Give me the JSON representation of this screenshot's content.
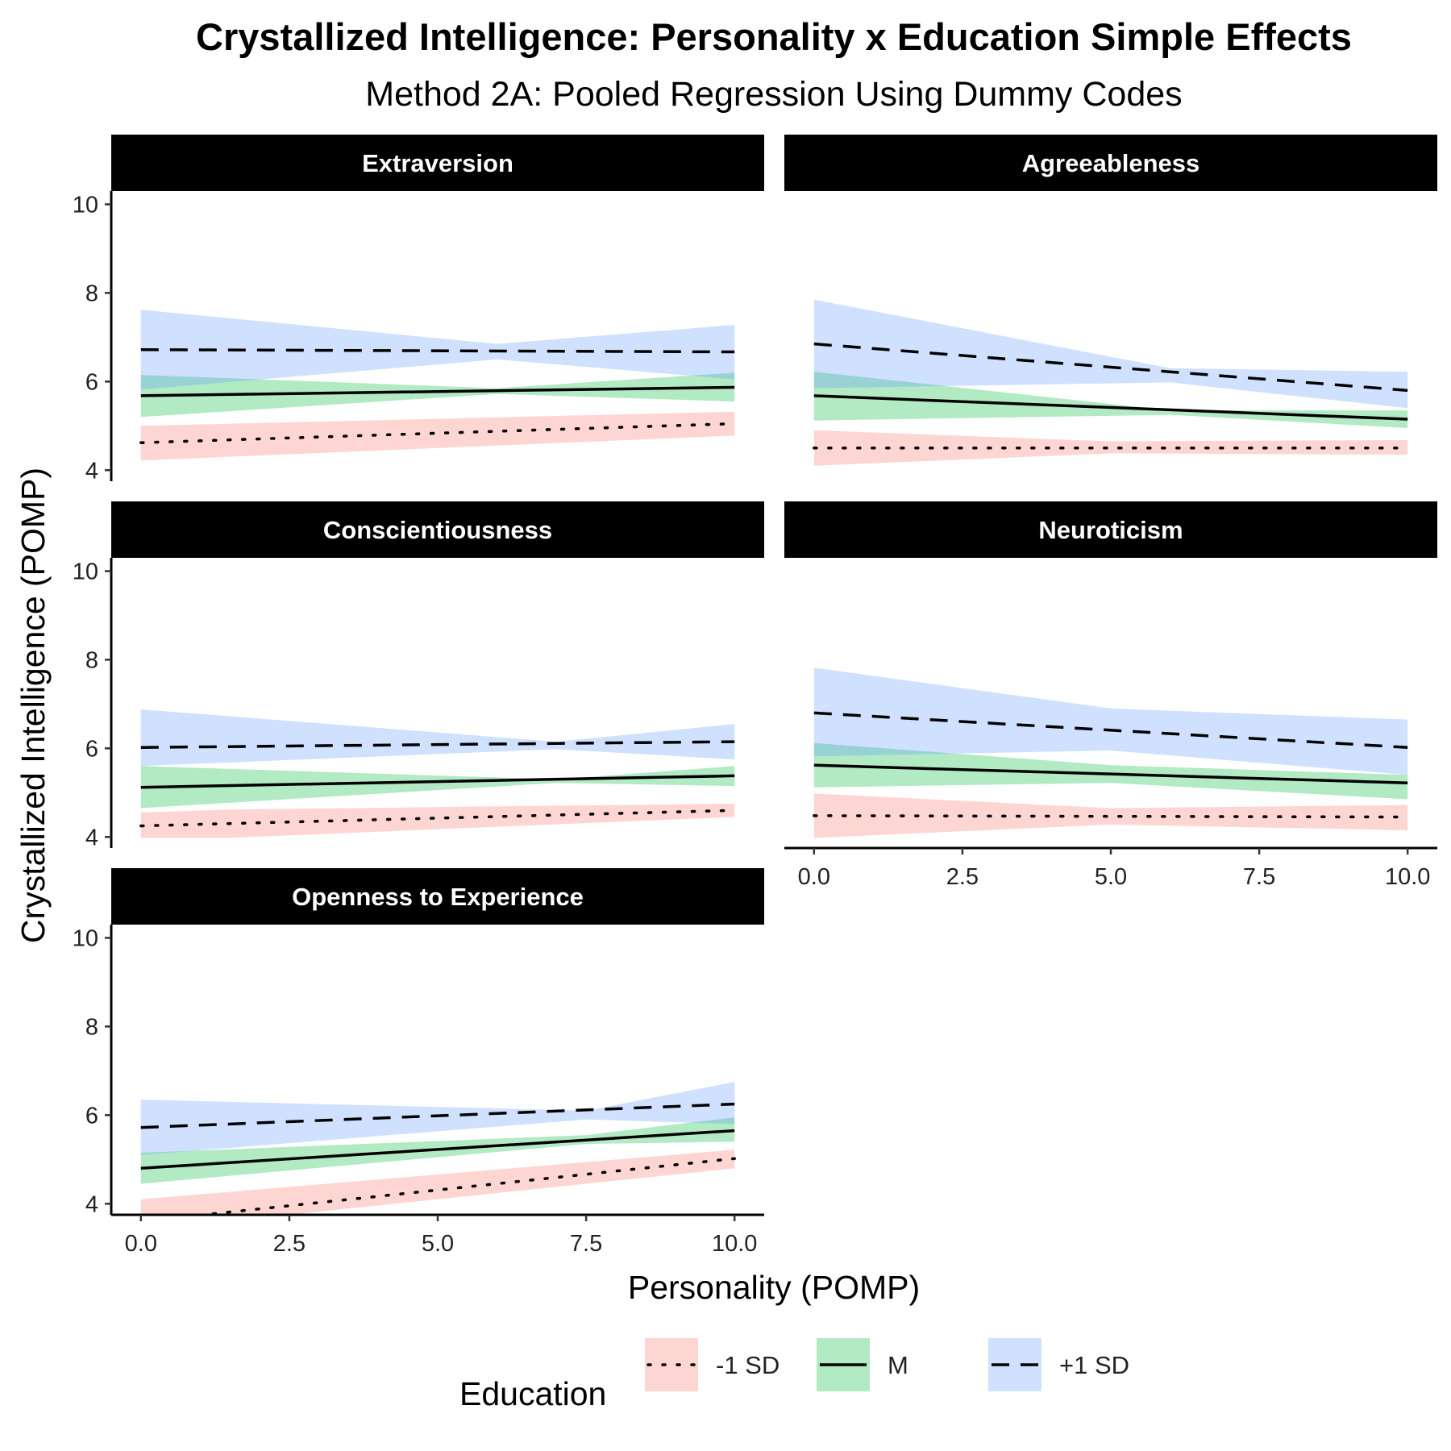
{
  "chart_data": {
    "type": "line",
    "title": "Crystallized Intelligence: Personality x Education Simple Effects",
    "subtitle": "Method 2A: Pooled Regression Using Dummy Codes",
    "xlabel": "Personality (POMP)",
    "ylabel": "Crystallized Intelligence (POMP)",
    "xlim": [
      -0.5,
      10.5
    ],
    "ylim": [
      3.75,
      10.3
    ],
    "x_ticks": [
      "0.0",
      "2.5",
      "5.0",
      "7.5",
      "10.0"
    ],
    "y_ticks": [
      "4",
      "6",
      "8",
      "10"
    ],
    "grid": false,
    "legend": {
      "title": "Education",
      "position": "bottom",
      "entries": [
        {
          "label": "-1 SD",
          "line": "dotted",
          "fill": "#F8766D"
        },
        {
          "label": "M",
          "line": "solid",
          "fill": "#00BA38"
        },
        {
          "label": "+1 SD",
          "line": "dashed",
          "fill": "#619CFF"
        }
      ]
    },
    "panels": [
      {
        "name": "Extraversion",
        "x": [
          0,
          10
        ],
        "series": [
          {
            "name": "-1 SD",
            "y": [
              4.62,
              5.05
            ],
            "ci_x": [
              0,
              10
            ],
            "ci_low": [
              4.22,
              4.78
            ],
            "ci_high": [
              5.0,
              5.32
            ]
          },
          {
            "name": "M",
            "y": [
              5.68,
              5.87
            ],
            "ci_x": [
              0,
              6,
              10
            ],
            "ci_low": [
              5.2,
              5.72,
              5.55
            ],
            "ci_high": [
              6.15,
              5.85,
              6.2
            ]
          },
          {
            "name": "+1 SD",
            "y": [
              6.72,
              6.67
            ],
            "ci_x": [
              0,
              6,
              10
            ],
            "ci_low": [
              5.82,
              6.5,
              6.05
            ],
            "ci_high": [
              7.62,
              6.85,
              7.28
            ]
          }
        ]
      },
      {
        "name": "Agreeableness",
        "x": [
          0,
          10
        ],
        "series": [
          {
            "name": "-1 SD",
            "y": [
              4.5,
              4.5
            ],
            "ci_x": [
              0,
              5,
              10
            ],
            "ci_low": [
              4.1,
              4.38,
              4.35
            ],
            "ci_high": [
              4.9,
              4.65,
              4.68
            ]
          },
          {
            "name": "M",
            "y": [
              5.68,
              5.15
            ],
            "ci_x": [
              0,
              6,
              10
            ],
            "ci_low": [
              5.12,
              5.25,
              4.95
            ],
            "ci_high": [
              6.22,
              5.35,
              5.35
            ]
          },
          {
            "name": "+1 SD",
            "y": [
              6.85,
              5.8
            ],
            "ci_x": [
              0,
              6,
              10
            ],
            "ci_low": [
              5.85,
              5.98,
              5.4
            ],
            "ci_high": [
              7.85,
              6.3,
              6.22
            ]
          }
        ]
      },
      {
        "name": "Conscientiousness",
        "x": [
          0,
          10
        ],
        "series": [
          {
            "name": "-1 SD",
            "y": [
              4.25,
              4.6
            ],
            "ci_x": [
              0,
              1.5,
              10
            ],
            "ci_low": [
              3.98,
              3.98,
              4.45
            ],
            "ci_high": [
              4.55,
              4.62,
              4.75
            ]
          },
          {
            "name": "M",
            "y": [
              5.12,
              5.38
            ],
            "ci_x": [
              0,
              7,
              10
            ],
            "ci_low": [
              4.65,
              5.22,
              5.15
            ],
            "ci_high": [
              5.6,
              5.3,
              5.6
            ]
          },
          {
            "name": "+1 SD",
            "y": [
              6.02,
              6.15
            ],
            "ci_x": [
              0,
              7,
              10
            ],
            "ci_low": [
              5.6,
              5.98,
              5.75
            ],
            "ci_high": [
              6.88,
              6.15,
              6.55
            ]
          }
        ]
      },
      {
        "name": "Neuroticism",
        "x": [
          0,
          10
        ],
        "series": [
          {
            "name": "-1 SD",
            "y": [
              4.48,
              4.45
            ],
            "ci_x": [
              0,
              5,
              10
            ],
            "ci_low": [
              3.98,
              4.28,
              4.15
            ],
            "ci_high": [
              4.98,
              4.65,
              4.72
            ]
          },
          {
            "name": "M",
            "y": [
              5.62,
              5.22
            ],
            "ci_x": [
              0,
              5,
              10
            ],
            "ci_low": [
              5.12,
              5.22,
              4.85
            ],
            "ci_high": [
              6.12,
              5.62,
              5.4
            ]
          },
          {
            "name": "+1 SD",
            "y": [
              6.8,
              6.02
            ],
            "ci_x": [
              0,
              5,
              10
            ],
            "ci_low": [
              5.82,
              5.95,
              5.4
            ],
            "ci_high": [
              7.82,
              6.9,
              6.65
            ]
          }
        ]
      },
      {
        "name": "Openness to Experience",
        "x": [
          0,
          10
        ],
        "series": [
          {
            "name": "-1 SD",
            "y": [
              3.6,
              5.02
            ],
            "ci_x": [
              0,
              10
            ],
            "ci_low": [
              3.4,
              4.8
            ],
            "ci_high": [
              4.1,
              5.22
            ]
          },
          {
            "name": "M",
            "y": [
              4.8,
              5.65
            ],
            "ci_x": [
              0,
              7.5,
              10
            ],
            "ci_low": [
              4.45,
              5.35,
              5.4
            ],
            "ci_high": [
              5.15,
              5.55,
              5.95
            ]
          },
          {
            "name": "+1 SD",
            "y": [
              5.72,
              6.25
            ],
            "ci_x": [
              0,
              7.5,
              10
            ],
            "ci_low": [
              5.1,
              5.9,
              5.8
            ],
            "ci_high": [
              6.35,
              6.1,
              6.75
            ]
          }
        ]
      }
    ]
  }
}
